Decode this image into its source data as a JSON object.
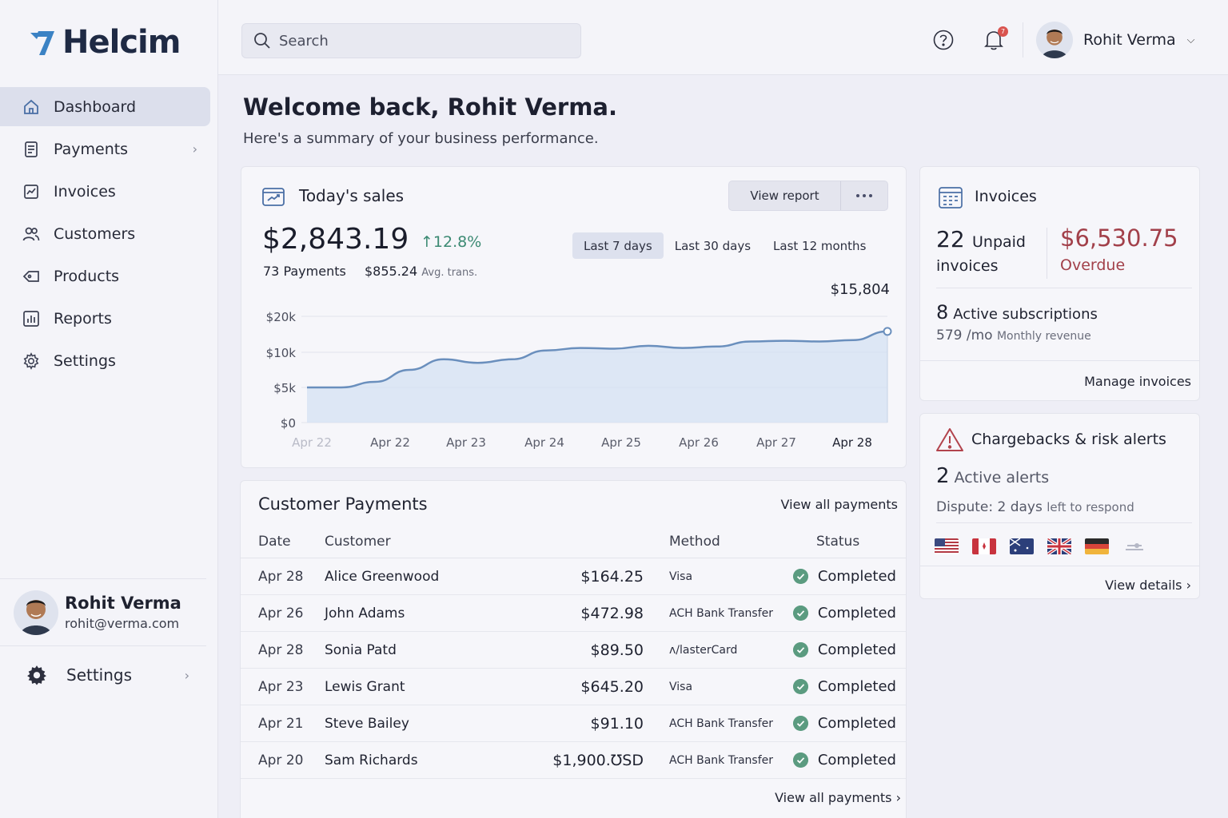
{
  "brand": {
    "name": "Helcim",
    "accent": "#3b82c4",
    "logo_color": "#1f2a44"
  },
  "sidebar": {
    "items": [
      {
        "label": "Dashboard",
        "icon": "home-icon",
        "active": true
      },
      {
        "label": "Payments",
        "icon": "receipt-icon",
        "has_chevron": true
      },
      {
        "label": "Invoices",
        "icon": "invoice-icon"
      },
      {
        "label": "Customers",
        "icon": "users-icon"
      },
      {
        "label": "Products",
        "icon": "tag-icon"
      },
      {
        "label": "Reports",
        "icon": "bar-chart-icon"
      },
      {
        "label": "Settings",
        "icon": "gear-icon"
      }
    ],
    "user": {
      "name": "Rohit Verma",
      "email": "rohit@verma.com"
    },
    "bottom_settings": {
      "label": "Settings",
      "icon": "gear-icon"
    }
  },
  "topbar": {
    "search_placeholder": "Search",
    "notification_count": "7",
    "user_name": "Rohit Verma"
  },
  "main": {
    "welcome": "Welcome back, Rohit Verma.",
    "subtitle": "Here's a summary of your business performance."
  },
  "sales": {
    "title": "Today's sales",
    "view_report": "View report",
    "amount": "$2,843.19",
    "change": "12.8%",
    "payments": "73 Payments",
    "avg_value": "$855.24",
    "avg_label": "Avg. trans.",
    "ranges": [
      "Last 7 days",
      "Last 30 days",
      "Last 12 months"
    ],
    "active_range": "Last 7 days",
    "peak_label": "$15,804"
  },
  "chart_data": {
    "type": "area",
    "x_tick_labels": [
      "Apr 22",
      "Apr 22",
      "Apr 23",
      "Apr 24",
      "Apr 25",
      "Apr 26",
      "Apr 27",
      "Apr 28"
    ],
    "y_tick_labels": [
      "$20k",
      "$10k",
      "$5k",
      "$0"
    ],
    "points": [
      {
        "x": 0.0,
        "y": 5000
      },
      {
        "x": 0.5,
        "y": 5000
      },
      {
        "x": 1.0,
        "y": 5800
      },
      {
        "x": 1.5,
        "y": 7500
      },
      {
        "x": 2.0,
        "y": 9000
      },
      {
        "x": 2.5,
        "y": 8500
      },
      {
        "x": 3.0,
        "y": 9000
      },
      {
        "x": 3.5,
        "y": 10500
      },
      {
        "x": 4.0,
        "y": 11200
      },
      {
        "x": 4.5,
        "y": 11000
      },
      {
        "x": 5.0,
        "y": 11800
      },
      {
        "x": 5.5,
        "y": 11200
      },
      {
        "x": 6.0,
        "y": 11600
      },
      {
        "x": 6.5,
        "y": 13000
      },
      {
        "x": 7.0,
        "y": 13200
      },
      {
        "x": 7.5,
        "y": 13000
      },
      {
        "x": 8.0,
        "y": 13400
      },
      {
        "x": 8.5,
        "y": 15804
      }
    ],
    "ylim": [
      0,
      20000
    ],
    "peak": {
      "value": 15804,
      "label": "$15,804"
    },
    "colors": {
      "line": "#6a8fbd",
      "fill": "#d4e2f3"
    },
    "grid": true
  },
  "payments": {
    "title": "Customer Payments",
    "view_all": "View all payments",
    "columns": [
      "Date",
      "Customer",
      "Method",
      "Status"
    ],
    "rows": [
      {
        "date": "Apr 28",
        "customer": "Alice Greenwood",
        "amount": "$164.25",
        "method": "Visa",
        "status": "Completed"
      },
      {
        "date": "Apr 26",
        "customer": "John Adams",
        "amount": "$472.98",
        "method": "ACH Bank Transfer",
        "status": "Completed"
      },
      {
        "date": "Apr 28",
        "customer": "Sonia Patd",
        "amount": "$89.50",
        "method": "ʌ/lasterCard",
        "status": "Completed"
      },
      {
        "date": "Apr 23",
        "customer": "Lewis Grant",
        "amount": "$645.20",
        "method": "Visa",
        "status": "Completed"
      },
      {
        "date": "Apr 21",
        "customer": "Steve Bailey",
        "amount": "$91.10",
        "method": "ACH Bank Transfer",
        "status": "Completed"
      },
      {
        "date": "Apr 20",
        "customer": "Sam Richards",
        "amount": "$1,900.ƱSD",
        "method": "ACH Bank Transfer",
        "status": "Completed"
      }
    ],
    "view_all_bottom": "View all payments ›"
  },
  "invoices": {
    "title": "Invoices",
    "unpaid_count": "22",
    "unpaid_label_1": "Unpaid",
    "unpaid_label_2": "invoices",
    "overdue_amount": "$6,530.75",
    "overdue_label": "Overdue",
    "subs_count": "8",
    "subs_label": "Active subscriptions",
    "monthly_value": "579 /mo",
    "monthly_label": "Monthly revenue",
    "manage": "Manage invoices"
  },
  "alerts": {
    "title": "Chargebacks & risk alerts",
    "count": "2",
    "count_label": "Active alerts",
    "dispute_prefix": "Dispute: 2 days",
    "dispute_suffix": "left to respond",
    "flags": [
      "us-flag-icon",
      "canada-flag-icon",
      "australia-flag-icon",
      "uk-flag-icon",
      "germany-flag-icon",
      "generic-flag-icon"
    ],
    "view_details": "View details ›"
  }
}
